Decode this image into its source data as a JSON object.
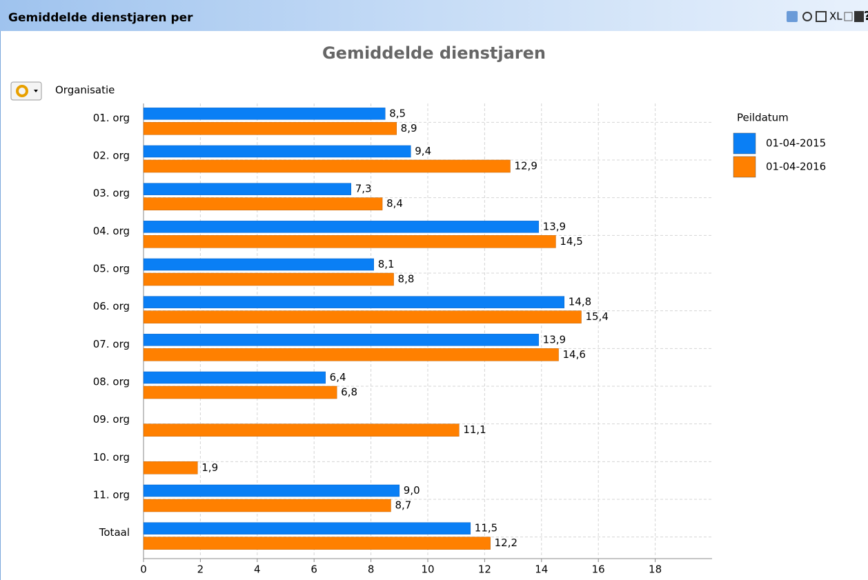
{
  "header": {
    "title": "Gemiddelde dienstjaren per",
    "icons": [
      "XL",
      "?"
    ]
  },
  "chart_data": {
    "type": "barh",
    "title": "Gemiddelde dienstjaren",
    "y_label": "Organisatie",
    "legend_title": "Peildatum",
    "legend": "right",
    "grid": true,
    "categories": [
      "01. org",
      "02. org",
      "03. org",
      "04. org",
      "05. org",
      "06. org",
      "07. org",
      "08. org",
      "09. org",
      "10. org",
      "11. org",
      "Totaal"
    ],
    "series": [
      {
        "name": "01-04-2015",
        "color": "#0a7ff5",
        "values": [
          8.5,
          9.4,
          7.3,
          13.9,
          8.1,
          14.8,
          13.9,
          6.4,
          null,
          null,
          9.0,
          11.5
        ],
        "value_labels": [
          "8,5",
          "9,4",
          "7,3",
          "13,9",
          "8,1",
          "14,8",
          "13,9",
          "6,4",
          null,
          null,
          "9,0",
          "11,5"
        ]
      },
      {
        "name": "01-04-2016",
        "color": "#ff8000",
        "values": [
          8.9,
          12.9,
          8.4,
          14.5,
          8.8,
          15.4,
          14.6,
          6.8,
          11.1,
          1.9,
          8.7,
          12.2
        ],
        "value_labels": [
          "8,9",
          "12,9",
          "8,4",
          "14,5",
          "8,8",
          "15,4",
          "14,6",
          "6,8",
          "11,1",
          "1,9",
          "8,7",
          "12,2"
        ]
      }
    ],
    "xlim": [
      0,
      20
    ],
    "xticks": [
      0,
      2,
      4,
      6,
      8,
      10,
      12,
      14,
      16,
      18
    ]
  }
}
